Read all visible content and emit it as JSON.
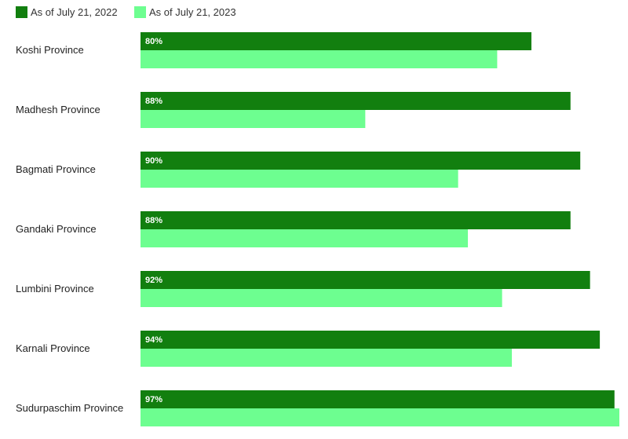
{
  "colors": {
    "series_2022": "#127f0f",
    "series_2023": "#6dfe90"
  },
  "chart_data": {
    "type": "bar",
    "orientation": "horizontal",
    "categories": [
      "Koshi Province",
      "Madhesh Province",
      "Bagmati Province",
      "Gandaki Province",
      "Lumbini Province",
      "Karnali Province",
      "Sudurpaschim Province"
    ],
    "series": [
      {
        "name": "As of July 21, 2022",
        "values": [
          80,
          88,
          90,
          88,
          92,
          94,
          97
        ],
        "data_labels": [
          "80%",
          "88%",
          "90%",
          "88%",
          "92%",
          "94%",
          "97%"
        ]
      },
      {
        "name": "As of July 21, 2023",
        "values": [
          73,
          46,
          65,
          67,
          74,
          76,
          98
        ]
      }
    ],
    "xlim": [
      0,
      98
    ],
    "grid": false,
    "legend_position": "top-left"
  }
}
